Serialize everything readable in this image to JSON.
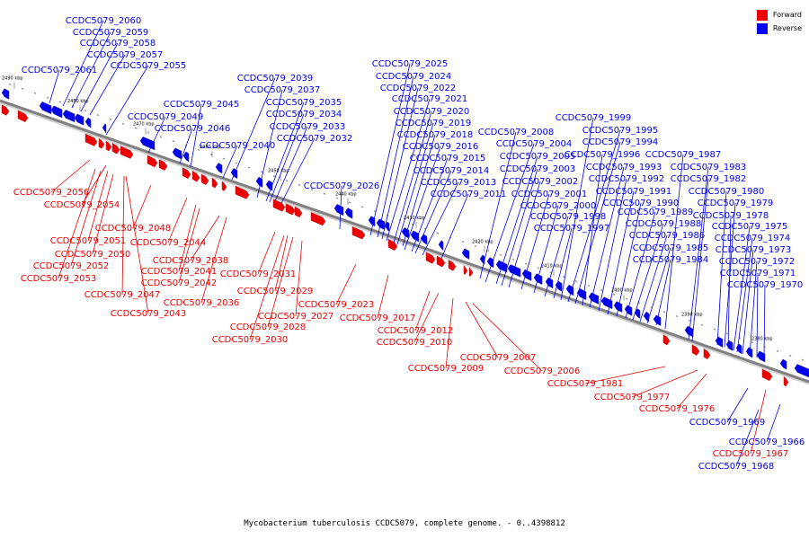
{
  "legend": [
    {
      "label": "Forward",
      "color": "#ee0000"
    },
    {
      "label": "Reverse",
      "color": "#0000ee"
    }
  ],
  "caption": "Mycobacterium tuberculosis CCDC5079, complete genome. - 0..4398812",
  "colors": {
    "forward": "#ee0000",
    "reverse": "#0000ee",
    "axis": "#808080",
    "leader_forward": "#ee0000",
    "leader_reverse": "#0000ee"
  },
  "ticks": [
    "2490 kbp",
    "2480 kbp",
    "2470 kbp",
    "2460 kbp",
    "2450 kbp",
    "2440 kbp",
    "2430 kbp",
    "2420 kbp",
    "2410 kbp",
    "2400 kbp",
    "2390 kbp",
    "2380 kbp"
  ],
  "reverse_labels": [
    "CCDC5079_2060",
    "CCDC5079_2059",
    "CCDC5079_2058",
    "CCDC5079_2057",
    "CCDC5079_2061",
    "CCDC5079_2055",
    "CCDC5079_2049",
    "CCDC5079_2046",
    "CCDC5079_2045",
    "CCDC5079_2040",
    "CCDC5079_2039",
    "CCDC5079_2037",
    "CCDC5079_2035",
    "CCDC5079_2034",
    "CCDC5079_2033",
    "CCDC5079_2032",
    "CCDC5079_2026",
    "CCDC5079_2025",
    "CCDC5079_2024",
    "CCDC5079_2022",
    "CCDC5079_2021",
    "CCDC5079_2020",
    "CCDC5079_2019",
    "CCDC5079_2018",
    "CCDC5079_2016",
    "CCDC5079_2015",
    "CCDC5079_2014",
    "CCDC5079_2013",
    "CCDC5079_2011",
    "CCDC5079_2008",
    "CCDC5079_2004",
    "CCDC5079_2005",
    "CCDC5079_2003",
    "CCDC5079_2002",
    "CCDC5079_2001",
    "CCDC5079_2000",
    "CCDC5079_1998",
    "CCDC5079_1997",
    "CCDC5079_1999",
    "CCDC5079_1995",
    "CCDC5079_1994",
    "CCDC5079_1996",
    "CCDC5079_1993",
    "CCDC5079_1992",
    "CCDC5079_1991",
    "CCDC5079_1990",
    "CCDC5079_1989",
    "CCDC5079_1988",
    "CCDC5079_1986",
    "CCDC5079_1985",
    "CCDC5079_1984",
    "CCDC5079_1987",
    "CCDC5079_1983",
    "CCDC5079_1982",
    "CCDC5079_1980",
    "CCDC5079_1979",
    "CCDC5079_1978",
    "CCDC5079_1975",
    "CCDC5079_1974",
    "CCDC5079_1973",
    "CCDC5079_1972",
    "CCDC5079_1971",
    "CCDC5079_1970",
    "CCDC5079_1969",
    "CCDC5079_1966",
    "CCDC5079_1968"
  ],
  "forward_labels": [
    "CCDC5079_2056",
    "CCDC5079_2054",
    "CCDC5079_2048",
    "CCDC5079_2051",
    "CCDC5079_2044",
    "CCDC5079_2050",
    "CCDC5079_2052",
    "CCDC5079_2041",
    "CCDC5079_2053",
    "CCDC5079_2042",
    "CCDC5079_2038",
    "CCDC5079_2047",
    "CCDC5079_2036",
    "CCDC5079_2043",
    "CCDC5079_2031",
    "CCDC5079_2029",
    "CCDC5079_2027",
    "CCDC5079_2028",
    "CCDC5079_2030",
    "CCDC5079_2023",
    "CCDC5079_2017",
    "CCDC5079_2012",
    "CCDC5079_2010",
    "CCDC5079_2009",
    "CCDC5079_2007",
    "CCDC5079_2006",
    "CCDC5079_1981",
    "CCDC5079_1977",
    "CCDC5079_1976",
    "CCDC5079_1967"
  ]
}
